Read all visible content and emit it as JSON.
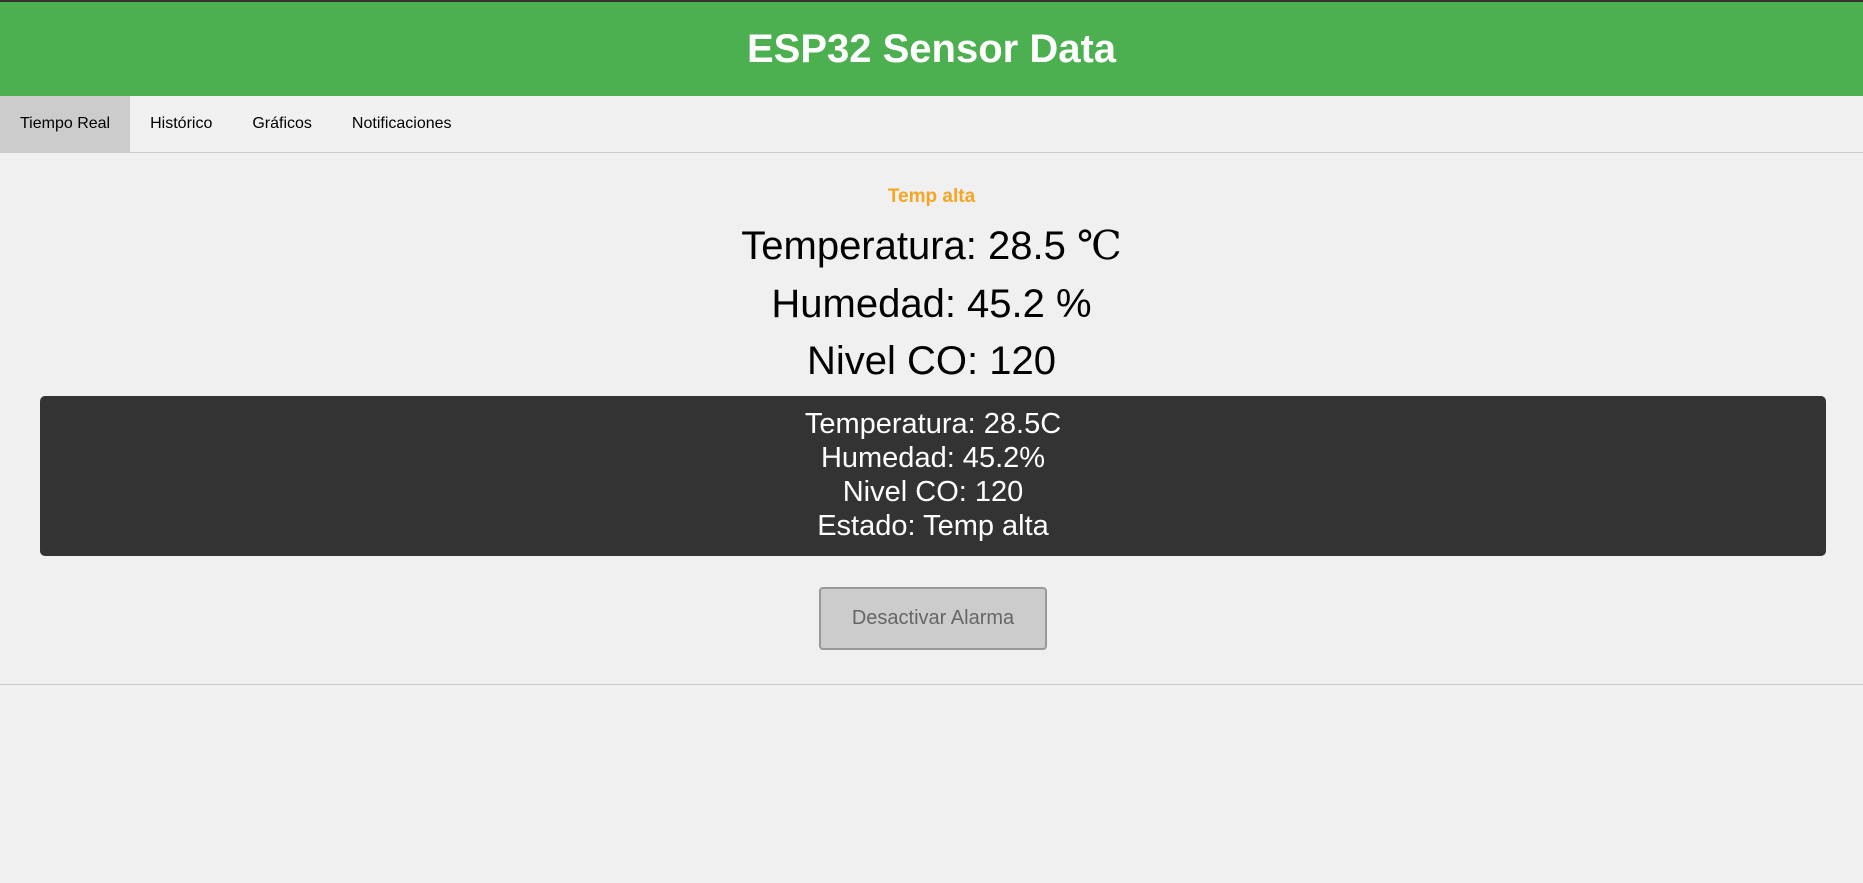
{
  "header": {
    "title": "ESP32 Sensor Data"
  },
  "tabs": [
    {
      "label": "Tiempo Real",
      "active": true
    },
    {
      "label": "Histórico",
      "active": false
    },
    {
      "label": "Gráficos",
      "active": false
    },
    {
      "label": "Notificaciones",
      "active": false
    }
  ],
  "main": {
    "status_text": "Temp alta",
    "temperature_label": "Temperatura: 28.5 ",
    "temperature_unit": "℃",
    "humidity_label": "Humedad: 45.2 %",
    "co_label": "Nivel CO: 120"
  },
  "lcd": {
    "line1": "Temperatura: 28.5C",
    "line2": "Humedad: 45.2%",
    "line3": "Nivel CO: 120",
    "line4": "Estado: Temp alta"
  },
  "alarm_button": {
    "label": "Desactivar Alarma"
  },
  "colors": {
    "header_bg": "#4caf50",
    "status_text": "#f5a623",
    "lcd_bg": "#333333",
    "active_tab_bg": "#cccccc"
  }
}
